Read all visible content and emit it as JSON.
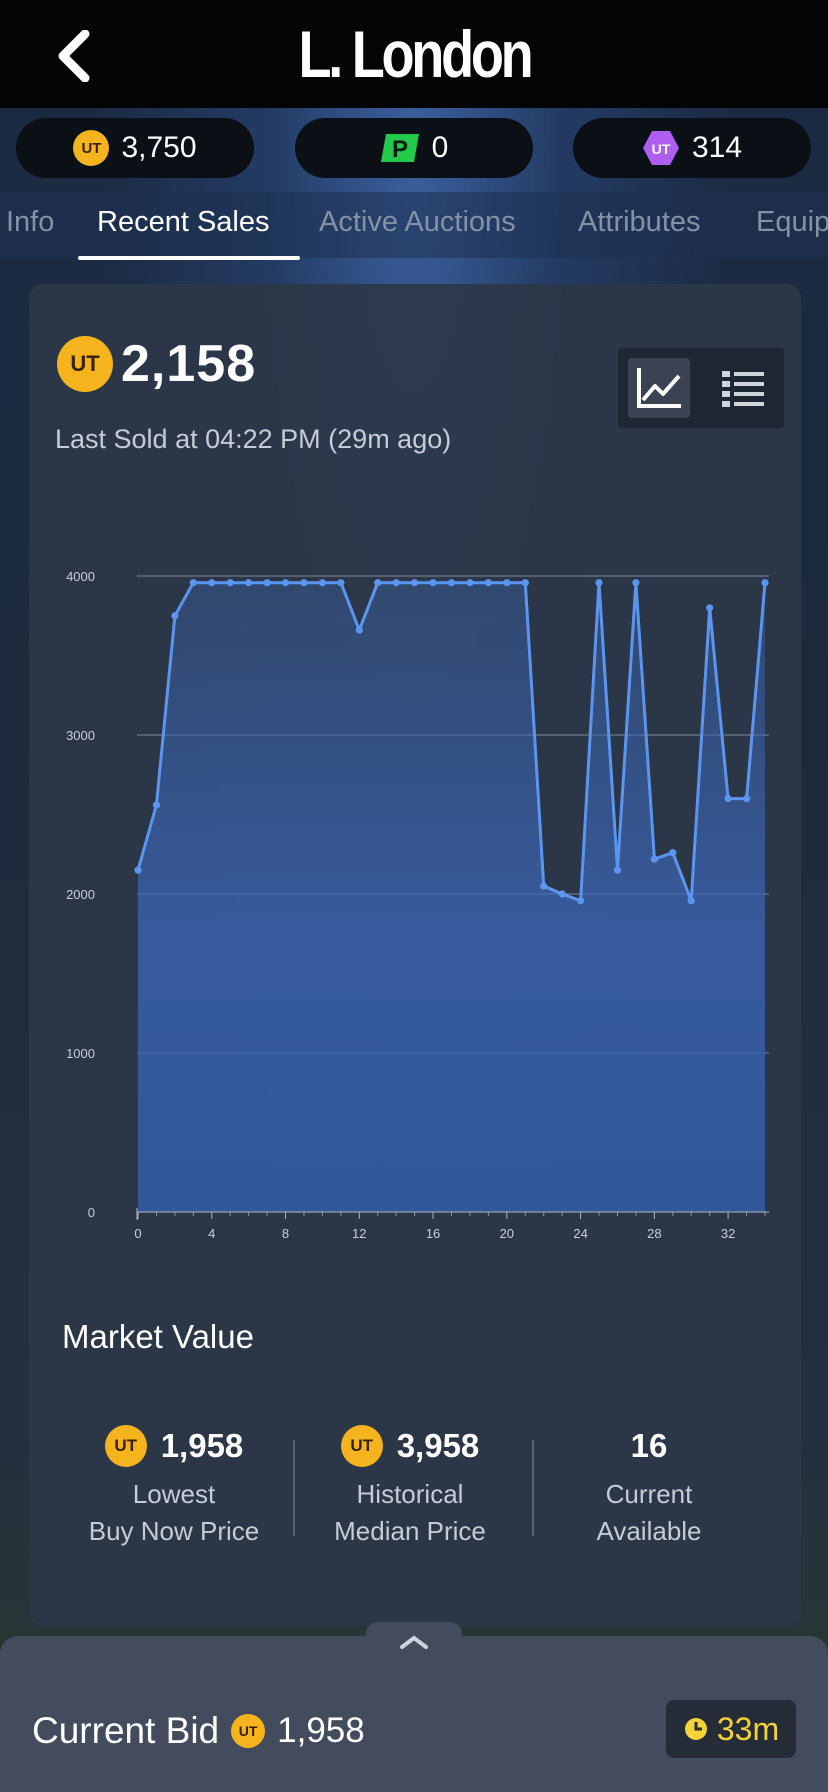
{
  "header": {
    "title": "L. London"
  },
  "currencies": [
    {
      "icon": "ut-coin-icon",
      "value": "3,750"
    },
    {
      "icon": "p-points-icon",
      "value": "0"
    },
    {
      "icon": "ut-gem-icon",
      "value": "314"
    }
  ],
  "tabs": [
    "Info",
    "Recent Sales",
    "Active Auctions",
    "Attributes",
    "Equip"
  ],
  "active_tab": "Recent Sales",
  "price": {
    "value": "2,158",
    "last_sold": "Last Sold at 04:22 PM (29m ago)"
  },
  "coin_label": "UT",
  "chart_data": {
    "type": "area",
    "x": [
      0,
      1,
      2,
      3,
      4,
      5,
      6,
      7,
      8,
      9,
      10,
      11,
      12,
      13,
      14,
      15,
      16,
      17,
      18,
      19,
      20,
      21,
      22,
      23,
      24,
      25,
      26,
      27,
      28,
      29,
      30,
      31,
      32,
      33,
      34
    ],
    "y": [
      2150,
      2560,
      3750,
      3958,
      3958,
      3958,
      3958,
      3958,
      3958,
      3958,
      3958,
      3958,
      3660,
      3958,
      3958,
      3958,
      3958,
      3958,
      3958,
      3958,
      3958,
      3958,
      2050,
      2000,
      1958,
      3958,
      2150,
      3958,
      2220,
      2260,
      1958,
      3800,
      2600,
      2600,
      3958
    ],
    "xticks": [
      "0",
      "4",
      "8",
      "12",
      "16",
      "20",
      "24",
      "28",
      "32"
    ],
    "yticks": [
      "0",
      "1000",
      "2000",
      "3000",
      "4000"
    ],
    "xlim": [
      0,
      34
    ],
    "ylim": [
      0,
      4000
    ],
    "grid": true,
    "color": "#5b95f0"
  },
  "market": {
    "title": "Market Value",
    "stats": [
      {
        "value": "1,958",
        "label1": "Lowest",
        "label2": "Buy Now Price",
        "coin": true
      },
      {
        "value": "3,958",
        "label1": "Historical",
        "label2": "Median Price",
        "coin": true
      },
      {
        "value": "16",
        "label1": "Current",
        "label2": "Available",
        "coin": false
      }
    ]
  },
  "bottom": {
    "bid_label": "Current Bid",
    "bid_value": "1,958",
    "timer": "33m"
  }
}
